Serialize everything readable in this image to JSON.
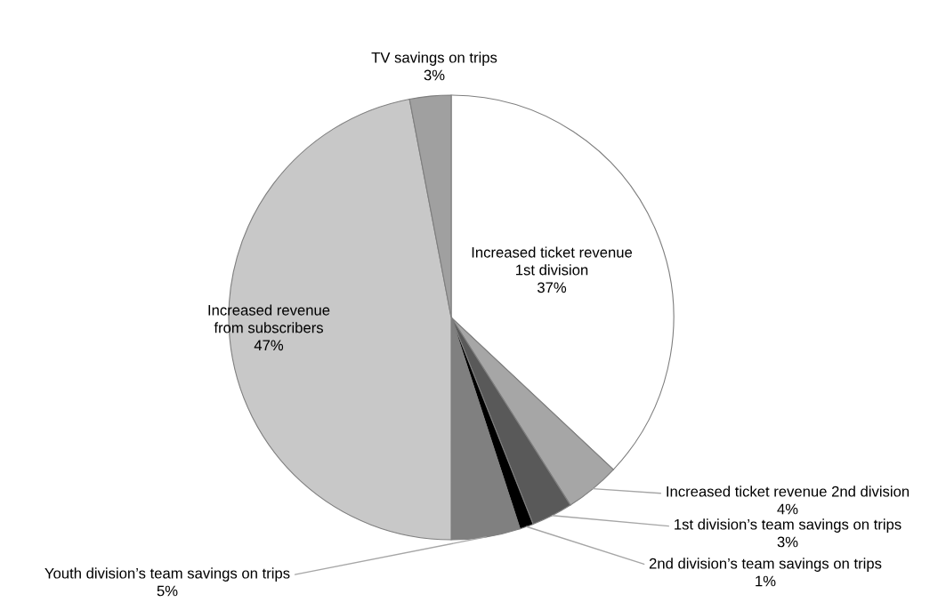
{
  "chart_data": {
    "type": "pie",
    "categories": [
      "Increased ticket revenue\n1st division",
      "Increased ticket revenue 2nd division",
      "1st division’s team savings on trips",
      "2nd division’s team savings on trips",
      "Youth division’s team savings on trips",
      "Increased revenue\nfrom subscribers",
      "TV savings on trips"
    ],
    "values": [
      37,
      4,
      3,
      1,
      5,
      47,
      3
    ],
    "value_labels": [
      "37%",
      "4%",
      "3%",
      "1%",
      "5%",
      "47%",
      "3%"
    ],
    "colors": [
      "#ffffff",
      "#a6a6a6",
      "#595959",
      "#000000",
      "#808080",
      "#c8c8c8",
      "#a0a0a0"
    ]
  }
}
